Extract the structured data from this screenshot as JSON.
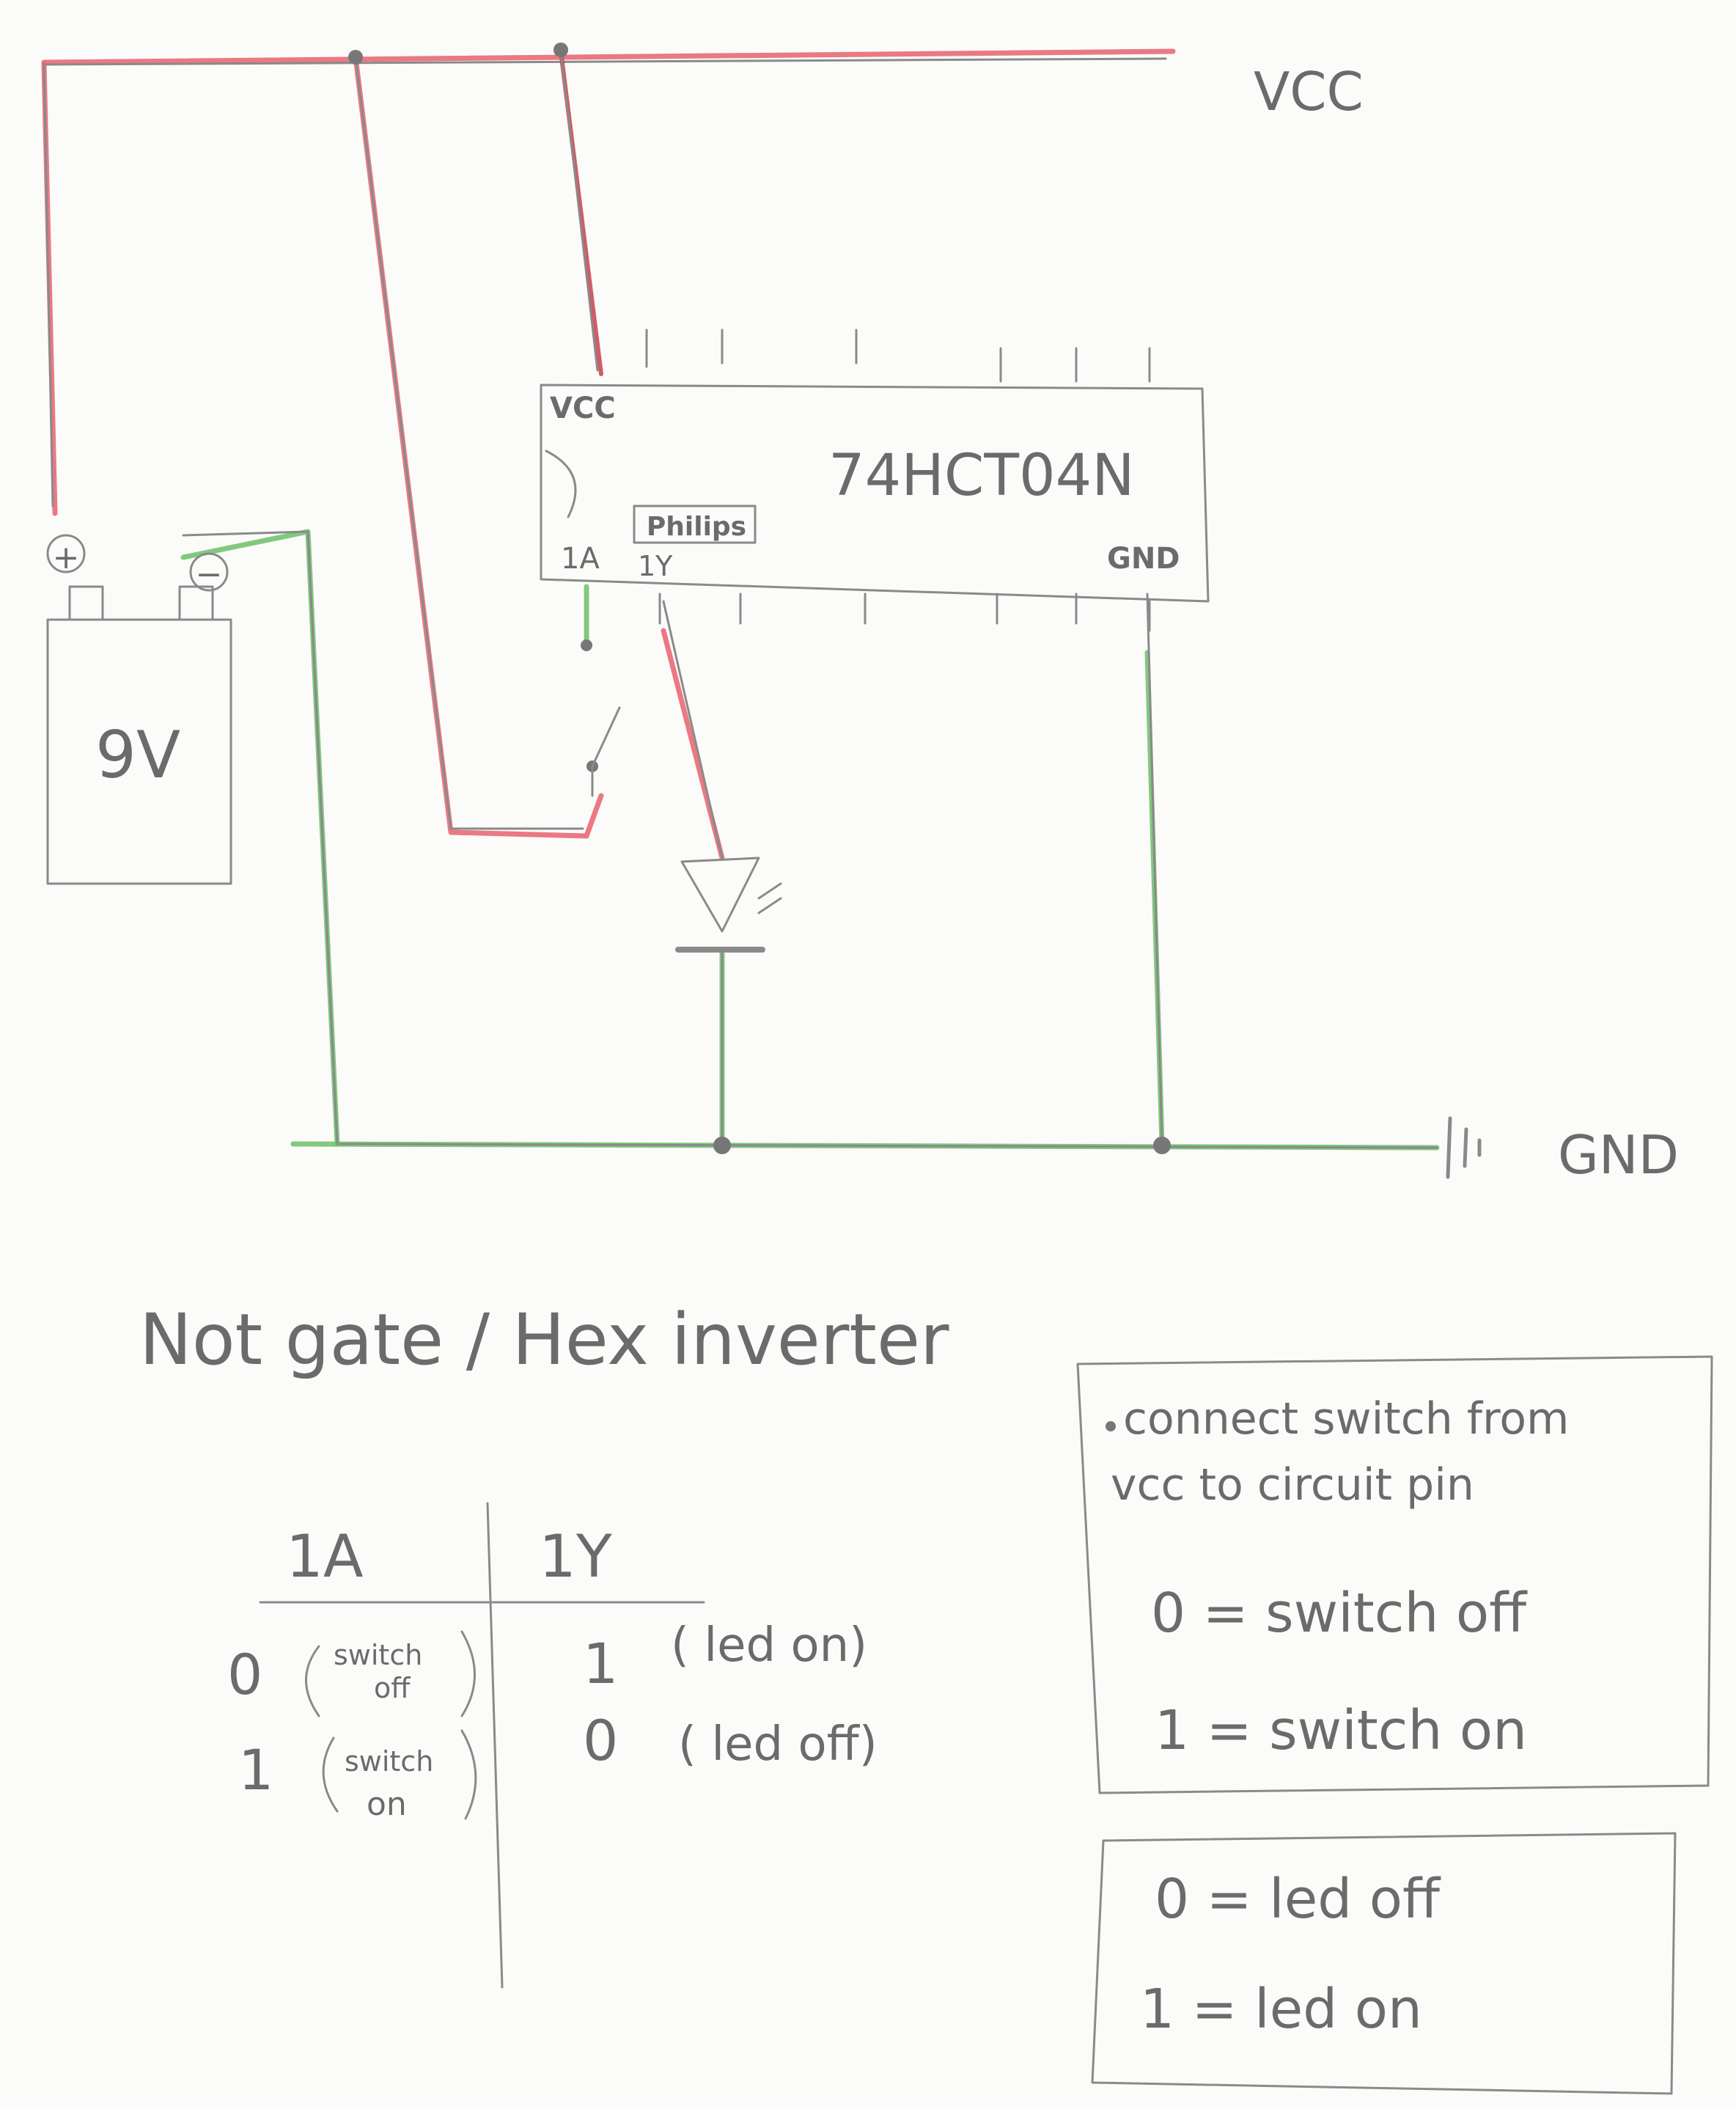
{
  "title": "Not gate / Hex inverter",
  "labels": {
    "vcc_rail": "VCC",
    "gnd_rail": "GND",
    "battery": "9V",
    "battery_plus": "+",
    "battery_minus": "−",
    "chip_name": "74HCT04N",
    "chip_maker": "Philips",
    "pin_vcc": "VCC",
    "pin_1a": "1A",
    "pin_1y": "1Y",
    "pin_gnd": "GND"
  },
  "truth_table": {
    "headers": [
      "1A",
      "1Y"
    ],
    "rows": [
      {
        "a": "0",
        "a_note_1": "switch",
        "a_note_2": "off",
        "y": "1",
        "y_note": "( led on)"
      },
      {
        "a": "1",
        "a_note_1": "switch",
        "a_note_2": "on",
        "y": "0",
        "y_note": "( led off)"
      }
    ]
  },
  "note_box": {
    "line1": "connect switch from",
    "line2": "vcc  to  circuit  pin",
    "def0": "0  = switch  off",
    "def1": "1  = switch  on"
  },
  "led_box": {
    "def0": "0  =  led  off",
    "def1": "1  =  led  on"
  },
  "colors": {
    "vcc_wire": "#e8606e",
    "gnd_wire": "#6bc068",
    "pencil": "#8a8a8a"
  }
}
